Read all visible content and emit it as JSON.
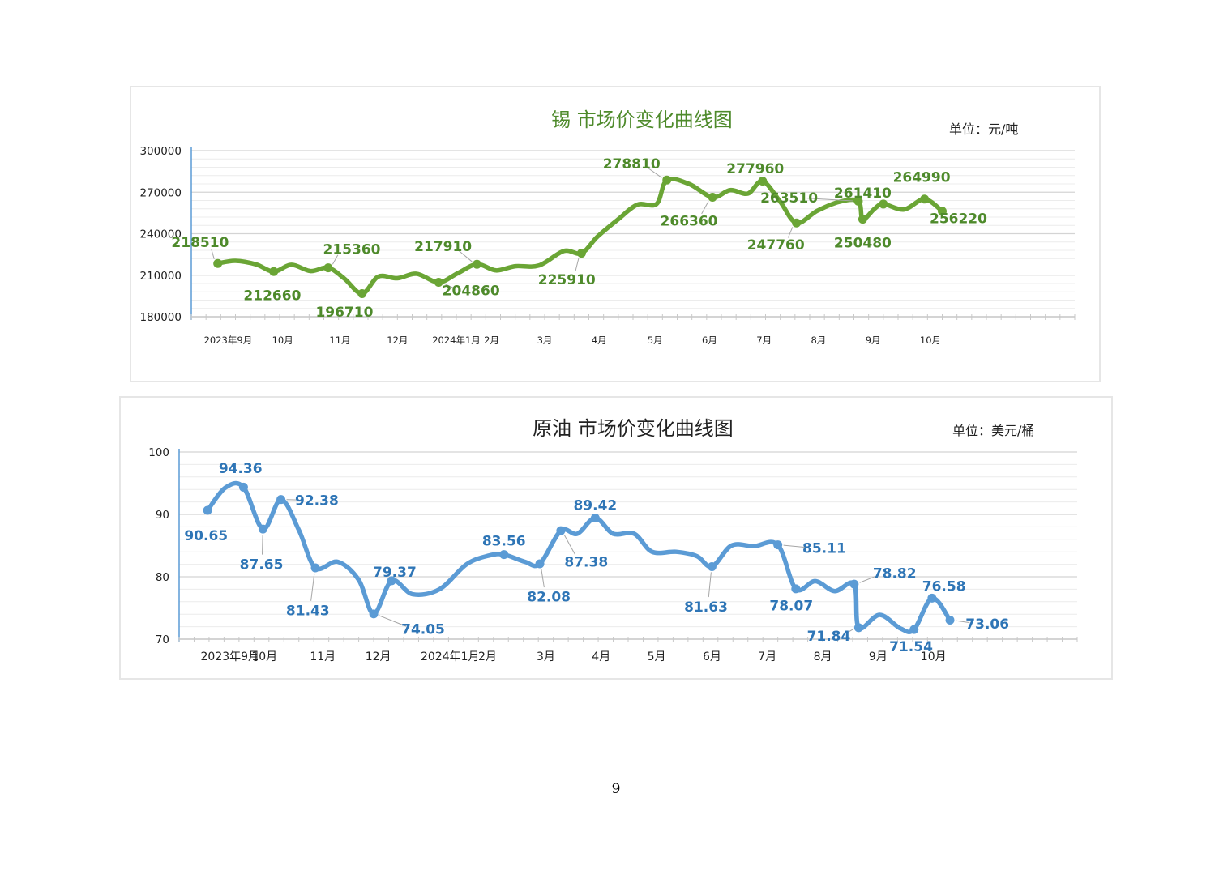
{
  "page": {
    "number": "9"
  },
  "chart_data": [
    {
      "type": "line",
      "title": "锡  市场价变化曲线图",
      "unit": "单位：元/吨",
      "color": "#6aa535",
      "label_color": "#4e8a2b",
      "ylim": [
        180000,
        300000
      ],
      "yticks": [
        180000,
        210000,
        240000,
        270000,
        300000
      ],
      "ytick_labels": [
        "180000",
        "210000",
        "240000",
        "270000",
        "300000"
      ],
      "xlim": [
        0,
        60
      ],
      "xticks": [
        {
          "x": 2.5,
          "label": "2023年9月"
        },
        {
          "x": 6.2,
          "label": "10月"
        },
        {
          "x": 10.1,
          "label": "11月"
        },
        {
          "x": 14.0,
          "label": "12月"
        },
        {
          "x": 18.0,
          "label": "2024年1月"
        },
        {
          "x": 20.4,
          "label": "2月"
        },
        {
          "x": 24.0,
          "label": "3月"
        },
        {
          "x": 27.7,
          "label": "4月"
        },
        {
          "x": 31.5,
          "label": "5月"
        },
        {
          "x": 35.2,
          "label": "6月"
        },
        {
          "x": 38.9,
          "label": "7月"
        },
        {
          "x": 42.6,
          "label": "8月"
        },
        {
          "x": 46.3,
          "label": "9月"
        },
        {
          "x": 50.2,
          "label": "10月"
        }
      ],
      "points": [
        {
          "x": 1.8,
          "y": 218510,
          "label": "218510",
          "lx": 0.6,
          "ly": 234000
        },
        {
          "x": 5.6,
          "y": 212660,
          "label": "212660",
          "lx": 5.5,
          "ly": 195500
        },
        {
          "x": 9.3,
          "y": 215360,
          "label": "215360",
          "lx": 10.9,
          "ly": 229000
        },
        {
          "x": 11.6,
          "y": 196710,
          "label": "196710",
          "lx": 10.4,
          "ly": 183500
        },
        {
          "x": 16.8,
          "y": 204860,
          "label": "204860",
          "lx": 19.0,
          "ly": 199000
        },
        {
          "x": 19.4,
          "y": 217910,
          "label": "217910",
          "lx": 17.1,
          "ly": 231000
        },
        {
          "x": 26.5,
          "y": 225910,
          "label": "225910",
          "lx": 25.5,
          "ly": 207000
        },
        {
          "x": 32.3,
          "y": 278810,
          "label": "278810",
          "lx": 29.9,
          "ly": 290500
        },
        {
          "x": 35.4,
          "y": 266360,
          "label": "266360",
          "lx": 33.8,
          "ly": 249500
        },
        {
          "x": 38.8,
          "y": 277960,
          "label": "277960",
          "lx": 38.3,
          "ly": 287000
        },
        {
          "x": 41.1,
          "y": 247760,
          "label": "247760",
          "lx": 39.7,
          "ly": 232000
        },
        {
          "x": 45.3,
          "y": 263510,
          "label": "263510",
          "lx": 40.6,
          "ly": 266000
        },
        {
          "x": 45.6,
          "y": 250480,
          "label": "250480",
          "lx": 45.6,
          "ly": 233500
        },
        {
          "x": 47.0,
          "y": 261410,
          "label": "261410",
          "lx": 45.6,
          "ly": 269500
        },
        {
          "x": 49.8,
          "y": 264990,
          "label": "264990",
          "lx": 49.6,
          "ly": 281000
        },
        {
          "x": 51.0,
          "y": 256220,
          "label": "256220",
          "lx": 52.1,
          "ly": 251000
        }
      ],
      "curve": [
        [
          1.8,
          218510
        ],
        [
          3.0,
          220400
        ],
        [
          4.4,
          217800
        ],
        [
          5.6,
          212660
        ],
        [
          6.8,
          217500
        ],
        [
          8.1,
          213000
        ],
        [
          9.3,
          215360
        ],
        [
          10.4,
          207500
        ],
        [
          11.6,
          196710
        ],
        [
          12.7,
          209000
        ],
        [
          14.0,
          207800
        ],
        [
          15.3,
          211000
        ],
        [
          16.8,
          204860
        ],
        [
          18.1,
          211500
        ],
        [
          19.4,
          217910
        ],
        [
          20.7,
          213500
        ],
        [
          22.0,
          216500
        ],
        [
          23.6,
          217000
        ],
        [
          25.3,
          227500
        ],
        [
          26.5,
          225910
        ],
        [
          27.6,
          238000
        ],
        [
          29.0,
          250500
        ],
        [
          30.3,
          261000
        ],
        [
          31.6,
          261500
        ],
        [
          32.3,
          278810
        ],
        [
          33.8,
          276000
        ],
        [
          35.4,
          266360
        ],
        [
          36.6,
          271500
        ],
        [
          37.8,
          269000
        ],
        [
          38.8,
          277960
        ],
        [
          40.0,
          263000
        ],
        [
          41.1,
          247760
        ],
        [
          42.5,
          256500
        ],
        [
          44.0,
          263000
        ],
        [
          45.3,
          263510
        ],
        [
          45.6,
          250480
        ],
        [
          46.4,
          258000
        ],
        [
          47.0,
          261410
        ],
        [
          48.4,
          257500
        ],
        [
          49.8,
          264990
        ],
        [
          51.0,
          256220
        ]
      ]
    },
    {
      "type": "line",
      "title": "原油  市场价变化曲线图",
      "unit": "单位：美元/桶",
      "color": "#5b9bd5",
      "label_color": "#2e75b6",
      "ylim": [
        70,
        100
      ],
      "yticks": [
        70,
        80,
        90,
        100
      ],
      "ytick_labels": [
        "70",
        "80",
        "90",
        "100"
      ],
      "xlim": [
        0,
        60
      ],
      "xticks": [
        {
          "x": 3.4,
          "label": "2023年9月"
        },
        {
          "x": 5.7,
          "label": "10月"
        },
        {
          "x": 9.6,
          "label": "11月"
        },
        {
          "x": 13.3,
          "label": "12月"
        },
        {
          "x": 18.1,
          "label": "2024年1月"
        },
        {
          "x": 20.6,
          "label": "2月"
        },
        {
          "x": 24.5,
          "label": "3月"
        },
        {
          "x": 28.2,
          "label": "4月"
        },
        {
          "x": 31.9,
          "label": "5月"
        },
        {
          "x": 35.6,
          "label": "6月"
        },
        {
          "x": 39.3,
          "label": "7月"
        },
        {
          "x": 43.0,
          "label": "8月"
        },
        {
          "x": 46.7,
          "label": "9月"
        },
        {
          "x": 50.4,
          "label": "10月"
        }
      ],
      "points": [
        {
          "x": 1.9,
          "y": 90.65,
          "label": "90.65",
          "lx": 1.8,
          "ly": 86.6
        },
        {
          "x": 4.3,
          "y": 94.36,
          "label": "94.36",
          "lx": 4.1,
          "ly": 97.4
        },
        {
          "x": 5.6,
          "y": 87.65,
          "label": "87.65",
          "lx": 5.5,
          "ly": 82.0
        },
        {
          "x": 6.8,
          "y": 92.38,
          "label": "92.38",
          "lx": 9.2,
          "ly": 92.3
        },
        {
          "x": 9.1,
          "y": 81.43,
          "label": "81.43",
          "lx": 8.6,
          "ly": 74.6
        },
        {
          "x": 13.0,
          "y": 74.05,
          "label": "74.05",
          "lx": 16.3,
          "ly": 71.6
        },
        {
          "x": 14.2,
          "y": 79.37,
          "label": "79.37",
          "lx": 14.4,
          "ly": 80.8
        },
        {
          "x": 21.7,
          "y": 83.56,
          "label": "83.56",
          "lx": 21.7,
          "ly": 85.8
        },
        {
          "x": 24.1,
          "y": 82.08,
          "label": "82.08",
          "lx": 24.7,
          "ly": 76.8
        },
        {
          "x": 25.5,
          "y": 87.38,
          "label": "87.38",
          "lx": 27.2,
          "ly": 82.4
        },
        {
          "x": 27.8,
          "y": 89.42,
          "label": "89.42",
          "lx": 27.8,
          "ly": 91.5
        },
        {
          "x": 35.6,
          "y": 81.63,
          "label": "81.63",
          "lx": 35.2,
          "ly": 75.2
        },
        {
          "x": 40.0,
          "y": 85.11,
          "label": "85.11",
          "lx": 43.1,
          "ly": 84.6
        },
        {
          "x": 41.2,
          "y": 78.07,
          "label": "78.07",
          "lx": 40.9,
          "ly": 75.4
        },
        {
          "x": 45.1,
          "y": 78.82,
          "label": "78.82",
          "lx": 47.8,
          "ly": 80.6
        },
        {
          "x": 45.4,
          "y": 71.84,
          "label": "71.84",
          "lx": 43.4,
          "ly": 70.5
        },
        {
          "x": 49.1,
          "y": 71.54,
          "label": "71.54",
          "lx": 48.9,
          "ly": 68.8
        },
        {
          "x": 50.3,
          "y": 76.58,
          "label": "76.58",
          "lx": 51.1,
          "ly": 78.5
        },
        {
          "x": 51.5,
          "y": 73.06,
          "label": "73.06",
          "lx": 54.0,
          "ly": 72.5
        }
      ],
      "curve": [
        [
          1.9,
          90.65
        ],
        [
          3.1,
          94.3
        ],
        [
          4.3,
          94.36
        ],
        [
          5.6,
          87.65
        ],
        [
          6.8,
          92.38
        ],
        [
          8.0,
          87.5
        ],
        [
          9.1,
          81.43
        ],
        [
          10.6,
          82.4
        ],
        [
          12.0,
          79.5
        ],
        [
          13.0,
          74.05
        ],
        [
          14.2,
          79.37
        ],
        [
          15.6,
          77.2
        ],
        [
          17.4,
          78.0
        ],
        [
          19.2,
          82.0
        ],
        [
          20.7,
          83.4
        ],
        [
          21.7,
          83.56
        ],
        [
          23.1,
          82.4
        ],
        [
          24.1,
          82.08
        ],
        [
          25.5,
          87.38
        ],
        [
          26.6,
          86.9
        ],
        [
          27.8,
          89.42
        ],
        [
          29.0,
          86.9
        ],
        [
          30.4,
          86.9
        ],
        [
          31.6,
          84.0
        ],
        [
          33.2,
          84.0
        ],
        [
          34.6,
          83.3
        ],
        [
          35.6,
          81.63
        ],
        [
          36.9,
          85.0
        ],
        [
          38.4,
          84.9
        ],
        [
          40.0,
          85.11
        ],
        [
          41.2,
          78.07
        ],
        [
          42.5,
          79.3
        ],
        [
          43.8,
          77.7
        ],
        [
          45.1,
          78.82
        ],
        [
          45.4,
          71.84
        ],
        [
          46.8,
          73.9
        ],
        [
          48.2,
          71.7
        ],
        [
          49.1,
          71.54
        ],
        [
          50.3,
          76.58
        ],
        [
          51.5,
          73.06
        ]
      ]
    }
  ]
}
